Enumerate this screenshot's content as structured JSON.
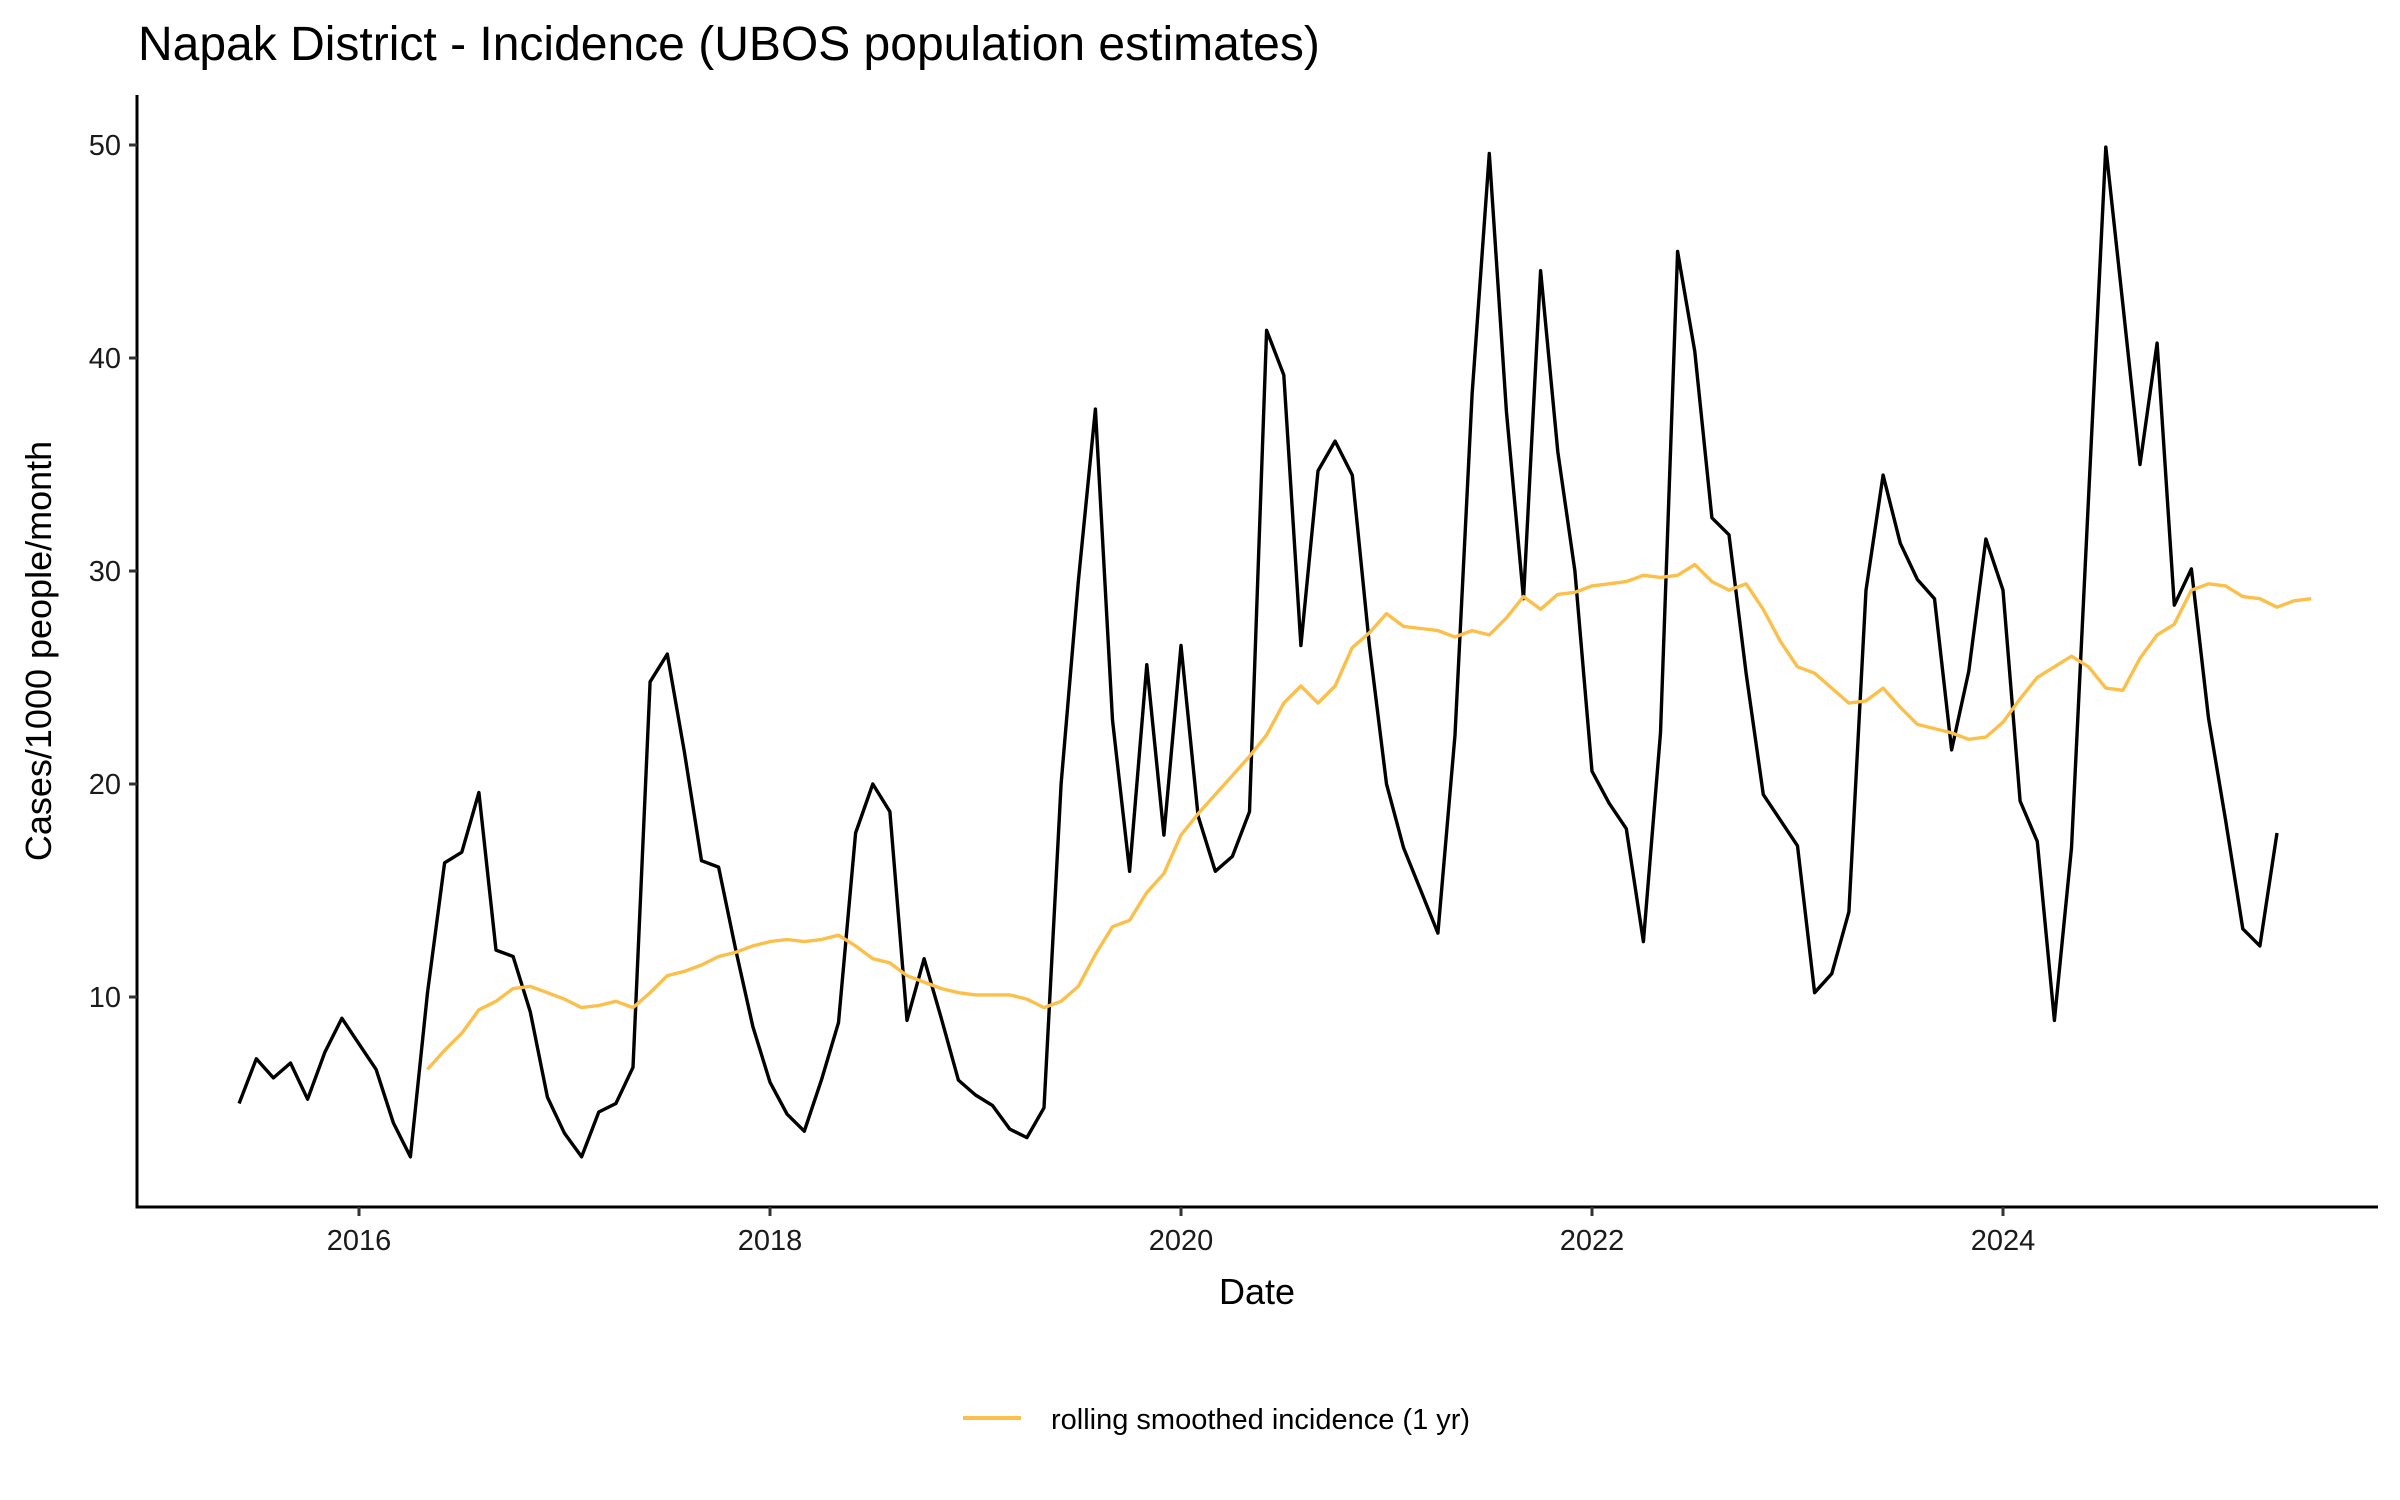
{
  "chart_data": {
    "type": "line",
    "title": "Napak District - Incidence (UBOS population estimates)",
    "xlabel": "Date",
    "ylabel": "Cases/1000 people/month",
    "x_start": "2015-06",
    "x_frequency": "monthly",
    "xlim": [
      2015.1,
      2025.9
    ],
    "ylim": [
      0.1,
      52.3
    ],
    "x_ticks": [
      2016,
      2018,
      2020,
      2022,
      2024
    ],
    "x_tick_labels": [
      "2016",
      "2018",
      "2020",
      "2022",
      "2024"
    ],
    "y_ticks": [
      10,
      20,
      30,
      40,
      50
    ],
    "y_tick_labels": [
      "10",
      "20",
      "30",
      "40",
      "50"
    ],
    "grid": false,
    "legend_position": "bottom",
    "series": [
      {
        "name": "incidence",
        "color": "#000000",
        "show_in_legend": false,
        "start": "2015-06",
        "values": [
          5.0,
          7.1,
          6.2,
          6.9,
          5.2,
          7.4,
          9.0,
          7.8,
          6.6,
          4.1,
          2.5,
          10.2,
          16.3,
          16.8,
          19.6,
          12.2,
          11.9,
          9.3,
          5.3,
          3.6,
          2.5,
          4.6,
          5.0,
          6.7,
          24.8,
          26.1,
          21.5,
          16.4,
          16.1,
          12.2,
          8.6,
          6.0,
          4.5,
          3.7,
          6.1,
          8.8,
          17.7,
          20.0,
          18.7,
          8.9,
          11.8,
          9.0,
          6.1,
          5.4,
          4.9,
          3.8,
          3.4,
          4.8,
          20.0,
          29.5,
          37.6,
          23.0,
          15.9,
          25.6,
          17.6,
          26.5,
          18.5,
          15.9,
          16.6,
          18.7,
          41.3,
          39.2,
          26.5,
          34.7,
          36.1,
          34.5,
          26.5,
          20.0,
          17.0,
          15.0,
          13.0,
          22.3,
          38.3,
          49.6,
          37.5,
          28.7,
          44.1,
          35.6,
          30.0,
          20.6,
          19.1,
          17.9,
          12.6,
          22.4,
          45.0,
          40.3,
          32.5,
          31.7,
          25.2,
          19.5,
          18.3,
          17.1,
          10.2,
          11.1,
          14.0,
          29.1,
          34.5,
          31.3,
          29.6,
          28.7,
          21.6,
          25.3,
          31.5,
          29.1,
          19.2,
          17.3,
          8.9,
          17.0,
          33.5,
          49.9,
          42.5,
          35.0,
          40.7,
          28.4,
          30.1,
          23.1,
          18.3,
          13.2,
          12.4,
          17.7
        ]
      },
      {
        "name": "rolling smoothed incidence (1 yr)",
        "color": "#FBBF4A",
        "show_in_legend": true,
        "start": "2016-05",
        "values": [
          6.6,
          7.5,
          8.3,
          9.4,
          9.8,
          10.4,
          10.5,
          10.2,
          9.9,
          9.5,
          9.6,
          9.8,
          9.5,
          10.2,
          11.0,
          11.2,
          11.5,
          11.9,
          12.1,
          12.4,
          12.6,
          12.7,
          12.6,
          12.7,
          12.9,
          12.4,
          11.8,
          11.6,
          11.0,
          10.7,
          10.4,
          10.2,
          10.1,
          10.1,
          10.1,
          9.9,
          9.5,
          9.8,
          10.5,
          12.0,
          13.3,
          13.6,
          14.9,
          15.8,
          17.6,
          18.6,
          19.5,
          20.4,
          21.3,
          22.3,
          23.8,
          24.6,
          23.8,
          24.6,
          26.4,
          27.1,
          28.0,
          27.4,
          27.3,
          27.2,
          26.9,
          27.2,
          27.0,
          27.8,
          28.8,
          28.2,
          28.9,
          29.0,
          29.3,
          29.4,
          29.5,
          29.8,
          29.7,
          29.8,
          30.3,
          29.5,
          29.1,
          29.4,
          28.2,
          26.7,
          25.5,
          25.2,
          24.5,
          23.8,
          23.9,
          24.5,
          23.6,
          22.8,
          22.6,
          22.4,
          22.1,
          22.2,
          22.9,
          24.0,
          25.0,
          25.5,
          26.0,
          25.5,
          24.5,
          24.4,
          25.9,
          27.0,
          27.5,
          29.1,
          29.4,
          29.3,
          28.8,
          28.7,
          28.3,
          28.6,
          28.7
        ]
      }
    ]
  }
}
